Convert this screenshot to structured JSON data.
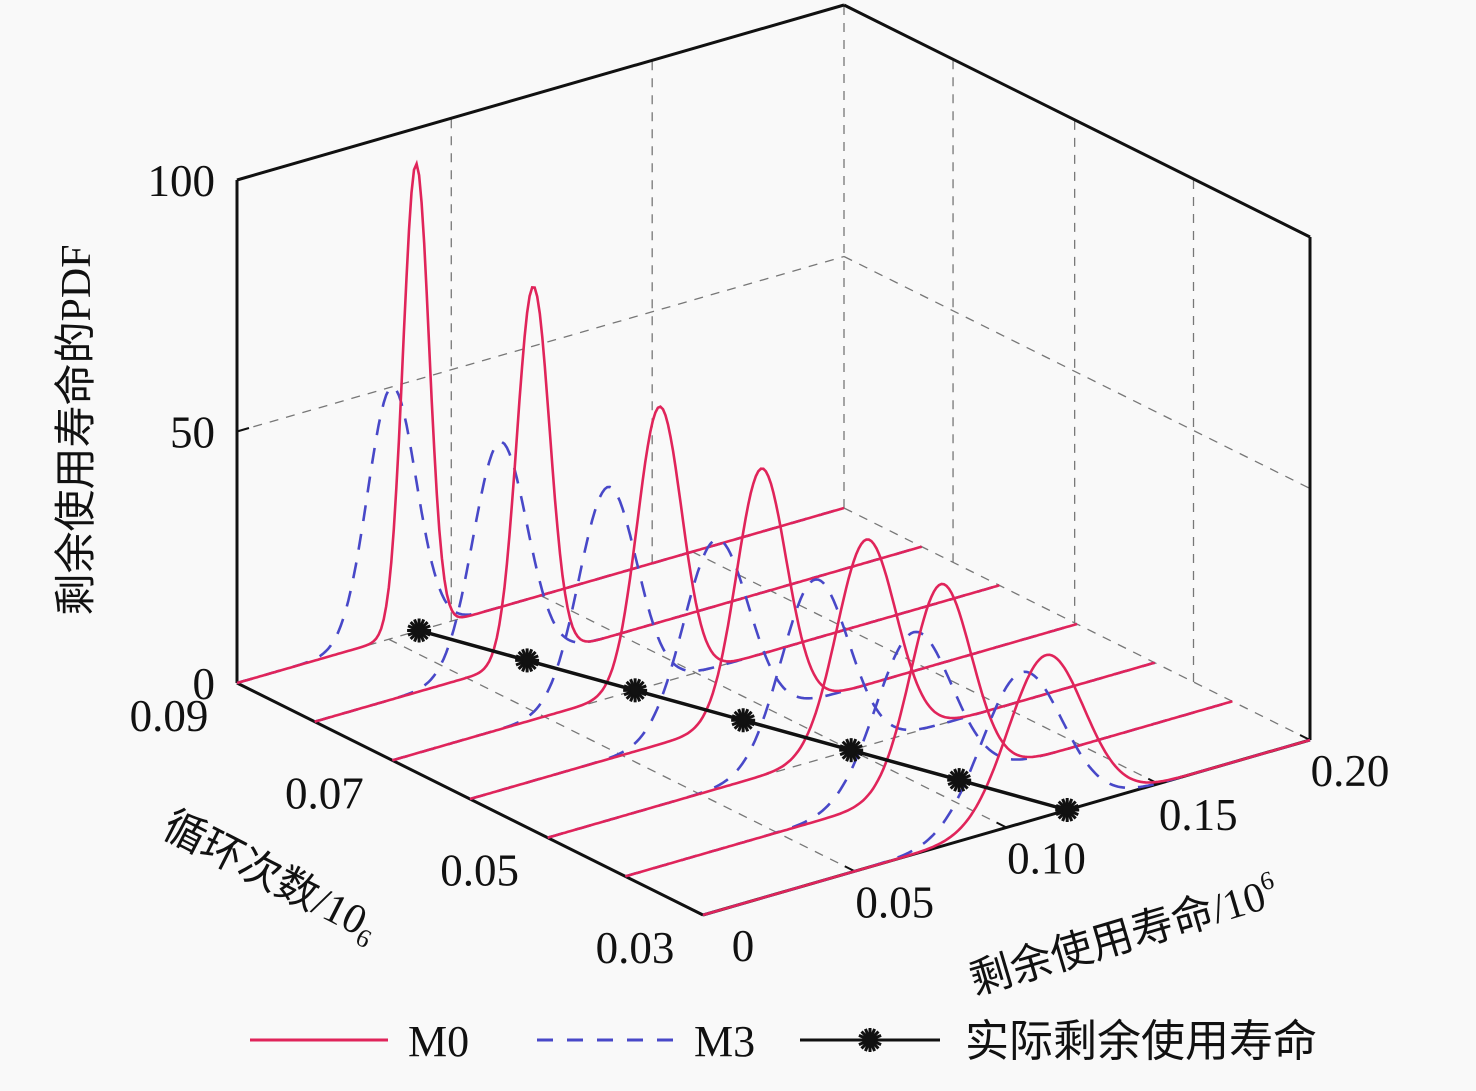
{
  "chart_data": {
    "type": "line3d",
    "zlabel": "剩余使用寿命的PDF",
    "xlabel": "循环次数/10",
    "xlabel_exp": "6",
    "ylabel": "剩余使用寿命/10",
    "ylabel_exp": "6",
    "x_ticks": [
      "0.09",
      "0.07",
      "0.05",
      "0.03"
    ],
    "y_ticks": [
      "0",
      "0.05",
      "0.10",
      "0.15",
      "0.20"
    ],
    "z_ticks": [
      "0",
      "50",
      "100"
    ],
    "xlim": [
      0.03,
      0.09
    ],
    "ylim": [
      0,
      0.2
    ],
    "zlim": [
      0,
      100
    ],
    "grid": true,
    "legend_position": "bottom",
    "cycles": [
      0.09,
      0.08,
      0.07,
      0.06,
      0.05,
      0.04,
      0.03
    ],
    "series": [
      {
        "name": "M0",
        "color": "#e0245a",
        "style": "solid",
        "peak_rul": [
          0.059,
          0.072,
          0.088,
          0.096,
          0.105,
          0.104,
          0.113
        ],
        "peak_pdf": [
          93,
          74,
          55,
          49,
          41,
          40,
          32
        ]
      },
      {
        "name": "M3",
        "color": "#4848c8",
        "style": "dashed",
        "peak_rul": [
          0.051,
          0.061,
          0.071,
          0.081,
          0.088,
          0.095,
          0.105
        ],
        "peak_pdf": [
          50,
          45,
          42,
          37.5,
          36,
          32,
          30
        ]
      },
      {
        "name": "实际剩余使用寿命",
        "color": "#111111",
        "style": "solid-star",
        "rul": [
          0.06,
          0.07,
          0.08,
          0.09,
          0.1,
          0.11,
          0.12
        ]
      }
    ]
  }
}
